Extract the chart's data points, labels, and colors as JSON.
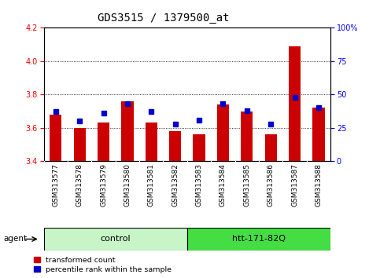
{
  "title": "GDS3515 / 1379500_at",
  "categories": [
    "GSM313577",
    "GSM313578",
    "GSM313579",
    "GSM313580",
    "GSM313581",
    "GSM313582",
    "GSM313583",
    "GSM313584",
    "GSM313585",
    "GSM313586",
    "GSM313587",
    "GSM313588"
  ],
  "red_values": [
    3.68,
    3.6,
    3.63,
    3.76,
    3.63,
    3.58,
    3.56,
    3.74,
    3.7,
    3.56,
    4.09,
    3.72
  ],
  "blue_percentiles": [
    37,
    30,
    36,
    43,
    37,
    28,
    31,
    43,
    38,
    28,
    48,
    40
  ],
  "ylim_left": [
    3.4,
    4.2
  ],
  "ylim_right": [
    0,
    100
  ],
  "yticks_left": [
    3.4,
    3.6,
    3.8,
    4.0,
    4.2
  ],
  "yticks_right": [
    0,
    25,
    50,
    75,
    100
  ],
  "ytick_labels_right": [
    "0",
    "25",
    "50",
    "75",
    "100%"
  ],
  "bar_color_red": "#cc0000",
  "bar_color_blue": "#0000cc",
  "bar_width": 0.5,
  "bg_color_plot": "#ffffff",
  "bg_color_xtick": "#d4d4d4",
  "grid_color": "black",
  "title_fontsize": 10,
  "tick_fontsize": 7,
  "xtick_fontsize": 6.5,
  "legend_red": "transformed count",
  "legend_blue": "percentile rank within the sample",
  "control_color": "#c8f5c8",
  "htt_color": "#44dd44",
  "control_label": "control",
  "htt_label": "htt-171-82Q",
  "agent_label": "agent"
}
